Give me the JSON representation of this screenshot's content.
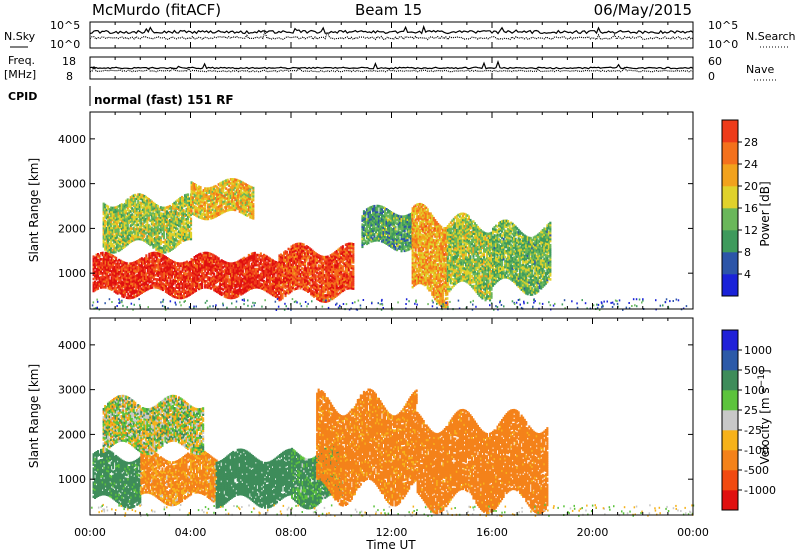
{
  "header": {
    "title": "McMurdo (fitACF)",
    "beam": "Beam 15",
    "date": "06/May/2015"
  },
  "params": {
    "nsky_label": "N.Sky",
    "nsearch_label": "N.Search",
    "freq_label_1": "Freq.",
    "freq_label_2": "[MHz]",
    "nave_label": "Nave",
    "cpid_label": "CPID",
    "cpid_value": "normal (fast) 151 RF",
    "noise_ticks": [
      "10^5",
      "10^0"
    ],
    "noise_ticks_right": [
      "10^5",
      "10^0"
    ],
    "freq_ticks": [
      "18",
      "8"
    ],
    "nave_ticks": [
      "60",
      "0"
    ]
  },
  "colors": {
    "power": [
      "#1a22d8",
      "#2c55a8",
      "#3e9a5c",
      "#6ab75a",
      "#e0d22b",
      "#f2a21c",
      "#f4711c",
      "#ee3b1a",
      "#e01010"
    ],
    "velocity": [
      "#e01010",
      "#f24a10",
      "#f4821a",
      "#f6b21a",
      "#c8c8c8",
      "#5cc33c",
      "#3e8c5a",
      "#2c5aa8",
      "#2020d8"
    ]
  },
  "chart_data": [
    {
      "type": "heatmap",
      "name": "power",
      "ylabel": "Slant Range [km]",
      "yticks": [
        "1000",
        "2000",
        "3000",
        "4000"
      ],
      "ylim": [
        200,
        4600
      ],
      "xlim": [
        0,
        24
      ],
      "colorbar_label": "Power [dB]",
      "colorbar_ticks": [
        "4",
        "8",
        "12",
        "16",
        "20",
        "24",
        "28"
      ],
      "colorbar_range": [
        0,
        32
      ],
      "blobs": [
        {
          "t0": 0.1,
          "t1": 7.5,
          "r0": 550,
          "r1": 1350,
          "value": 28
        },
        {
          "t0": 7.5,
          "t1": 10.5,
          "r0": 500,
          "r1": 1500,
          "value": 26
        },
        {
          "t0": 0.5,
          "t1": 4.0,
          "r0": 1600,
          "r1": 2600,
          "value": 14
        },
        {
          "t0": 4.0,
          "t1": 6.5,
          "r0": 2300,
          "r1": 3000,
          "value": 18
        },
        {
          "t0": 10.8,
          "t1": 12.8,
          "r0": 1600,
          "r1": 2400,
          "value": 10
        },
        {
          "t0": 12.8,
          "t1": 14.2,
          "r0": 500,
          "r1": 2300,
          "value": 20
        },
        {
          "t0": 14.2,
          "t1": 16.0,
          "r0": 600,
          "r1": 2100,
          "value": 14
        },
        {
          "t0": 16.0,
          "t1": 18.3,
          "r0": 700,
          "r1": 2000,
          "value": 12
        }
      ]
    },
    {
      "type": "heatmap",
      "name": "velocity",
      "ylabel": "Slant Range [km]",
      "xlabel": "Time UT",
      "yticks": [
        "1000",
        "2000",
        "3000",
        "4000"
      ],
      "xticks": [
        "00:00",
        "04:00",
        "08:00",
        "12:00",
        "16:00",
        "20:00",
        "00:00"
      ],
      "ylim": [
        200,
        4600
      ],
      "xlim": [
        0,
        24
      ],
      "colorbar_label": "Velocity [m s^-1]",
      "colorbar_ticks": [
        "1000",
        "500",
        "100",
        "25",
        "-25",
        "-100",
        "-500",
        "-1000"
      ],
      "blobs": [
        {
          "t0": 0.1,
          "t1": 2.0,
          "r0": 500,
          "r1": 1500,
          "value": 200
        },
        {
          "t0": 2.0,
          "t1": 5.0,
          "r0": 550,
          "r1": 1500,
          "value": -150
        },
        {
          "t0": 5.0,
          "t1": 8.0,
          "r0": 500,
          "r1": 1500,
          "value": 300
        },
        {
          "t0": 8.0,
          "t1": 10.0,
          "r0": 500,
          "r1": 1600,
          "value": 150
        },
        {
          "t0": 0.5,
          "t1": 4.5,
          "r0": 1700,
          "r1": 2700,
          "value": 20
        },
        {
          "t0": 9.0,
          "t1": 13.0,
          "r0": 700,
          "r1": 2700,
          "value": -200
        },
        {
          "t0": 13.0,
          "t1": 18.2,
          "r0": 500,
          "r1": 2300,
          "value": -220
        }
      ]
    }
  ]
}
